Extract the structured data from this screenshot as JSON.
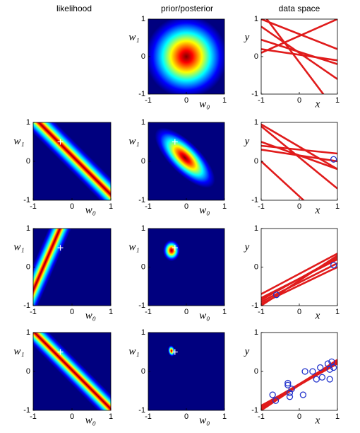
{
  "column_titles": [
    "likelihood",
    "prior/posterior",
    "data space"
  ],
  "chart_data": [
    {
      "type": "heatmap",
      "colormap": "jet",
      "xlabel": "w₀",
      "ylabel": "w₁",
      "xlim": [
        -1,
        1
      ],
      "ylim": [
        -1,
        1
      ],
      "xticks": [
        -1,
        0,
        1
      ],
      "yticks": [
        -1,
        0,
        1
      ]
    },
    {
      "type": "line",
      "xlabel": "x",
      "ylabel": "y",
      "xlim": [
        -1,
        1
      ],
      "ylim": [
        -1,
        1
      ],
      "xticks": [
        -1,
        0,
        1
      ],
      "yticks": [
        -1,
        0,
        1
      ],
      "x": [
        -1,
        1
      ],
      "series": [
        {
          "color": "#e01b1b",
          "values": [
            1.0,
            0.2
          ]
        },
        {
          "color": "#e01b1b",
          "values": [
            0.45,
            -0.2
          ]
        },
        {
          "color": "#e01b1b",
          "values": [
            0.2,
            -0.1
          ]
        },
        {
          "color": "#e01b1b",
          "values": [
            1.2,
            -1.5
          ]
        },
        {
          "color": "#e01b1b",
          "values": [
            0.8,
            -0.6
          ]
        },
        {
          "color": "#e01b1b",
          "values": [
            0.1,
            1.0
          ]
        }
      ]
    },
    {
      "type": "heatmap",
      "colormap": "jet",
      "xlabel": "w₀",
      "ylabel": "w₁",
      "xlim": [
        -1,
        1
      ],
      "ylim": [
        -1,
        1
      ],
      "xticks": [
        -1,
        0,
        1
      ],
      "yticks": [
        -1,
        0,
        1
      ],
      "marker": {
        "x": -0.3,
        "y": 0.5,
        "color": "#ffffff"
      }
    },
    {
      "type": "heatmap",
      "colormap": "jet",
      "xlabel": "w₀",
      "ylabel": "w₁",
      "xlim": [
        -1,
        1
      ],
      "ylim": [
        -1,
        1
      ],
      "xticks": [
        -1,
        0,
        1
      ],
      "yticks": [
        -1,
        0,
        1
      ],
      "marker": {
        "x": -0.3,
        "y": 0.5,
        "color": "#ffffff"
      }
    },
    {
      "type": "line",
      "xlabel": "x",
      "ylabel": "y",
      "xlim": [
        -1,
        1
      ],
      "ylim": [
        -1,
        1
      ],
      "xticks": [
        -1,
        0,
        1
      ],
      "yticks": [
        -1,
        0,
        1
      ],
      "x": [
        -1,
        1
      ],
      "series": [
        {
          "color": "#e01b1b",
          "values": [
            0.5,
            -0.2
          ]
        },
        {
          "color": "#e01b1b",
          "values": [
            0.3,
            0.0
          ]
        },
        {
          "color": "#e01b1b",
          "values": [
            0.95,
            -0.2
          ]
        },
        {
          "color": "#e01b1b",
          "values": [
            0.4,
            0.2
          ]
        },
        {
          "color": "#e01b1b",
          "values": [
            0.9,
            -0.7
          ]
        },
        {
          "color": "#e01b1b",
          "values": [
            0.0,
            -1.8
          ]
        }
      ],
      "points": {
        "color": "#2233cc",
        "x": [
          0.9
        ],
        "y": [
          0.05
        ]
      }
    },
    {
      "type": "heatmap",
      "colormap": "jet",
      "xlabel": "w₀",
      "ylabel": "w₁",
      "xlim": [
        -1,
        1
      ],
      "ylim": [
        -1,
        1
      ],
      "xticks": [
        -1,
        0,
        1
      ],
      "yticks": [
        -1,
        0,
        1
      ],
      "marker": {
        "x": -0.3,
        "y": 0.5,
        "color": "#ffffff"
      }
    },
    {
      "type": "heatmap",
      "colormap": "jet",
      "xlabel": "w₀",
      "ylabel": "w₁",
      "xlim": [
        -1,
        1
      ],
      "ylim": [
        -1,
        1
      ],
      "xticks": [
        -1,
        0,
        1
      ],
      "yticks": [
        -1,
        0,
        1
      ],
      "marker": {
        "x": -0.3,
        "y": 0.5,
        "color": "#ffffff"
      }
    },
    {
      "type": "line",
      "xlabel": "x",
      "ylabel": "y",
      "xlim": [
        -1,
        1
      ],
      "ylim": [
        -1,
        1
      ],
      "xticks": [
        -1,
        0,
        1
      ],
      "yticks": [
        -1,
        0,
        1
      ],
      "x": [
        -1,
        1
      ],
      "series": [
        {
          "color": "#e01b1b",
          "values": [
            -1.0,
            0.3
          ]
        },
        {
          "color": "#e01b1b",
          "values": [
            -0.8,
            0.2
          ]
        },
        {
          "color": "#e01b1b",
          "values": [
            -0.95,
            0.0
          ]
        },
        {
          "color": "#e01b1b",
          "values": [
            -0.7,
            0.35
          ]
        },
        {
          "color": "#e01b1b",
          "values": [
            -0.9,
            0.1
          ]
        },
        {
          "color": "#e01b1b",
          "values": [
            -0.85,
            0.25
          ]
        }
      ],
      "points": {
        "color": "#2233cc",
        "x": [
          -0.6,
          0.9
        ],
        "y": [
          -0.72,
          0.05
        ]
      }
    },
    {
      "type": "heatmap",
      "colormap": "jet",
      "xlabel": "w₀",
      "ylabel": "w₁",
      "xlim": [
        -1,
        1
      ],
      "ylim": [
        -1,
        1
      ],
      "xticks": [
        -1,
        0,
        1
      ],
      "yticks": [
        -1,
        0,
        1
      ],
      "marker": {
        "x": -0.3,
        "y": 0.5,
        "color": "#ffffff"
      }
    },
    {
      "type": "heatmap",
      "colormap": "jet",
      "xlabel": "w₀",
      "ylabel": "w₁",
      "xlim": [
        -1,
        1
      ],
      "ylim": [
        -1,
        1
      ],
      "xticks": [
        -1,
        0,
        1
      ],
      "yticks": [
        -1,
        0,
        1
      ],
      "marker": {
        "x": -0.3,
        "y": 0.5,
        "color": "#ffffff"
      }
    },
    {
      "type": "line",
      "xlabel": "x",
      "ylabel": "y",
      "xlim": [
        -1,
        1
      ],
      "ylim": [
        -1,
        1
      ],
      "xticks": [
        -1,
        0,
        1
      ],
      "yticks": [
        -1,
        0,
        1
      ],
      "x": [
        -1,
        1
      ],
      "series": [
        {
          "color": "#e01b1b",
          "values": [
            -0.95,
            0.25
          ]
        },
        {
          "color": "#e01b1b",
          "values": [
            -0.9,
            0.25
          ]
        },
        {
          "color": "#e01b1b",
          "values": [
            -0.92,
            0.22
          ]
        },
        {
          "color": "#e01b1b",
          "values": [
            -1.0,
            0.3
          ]
        },
        {
          "color": "#e01b1b",
          "values": [
            -0.88,
            0.2
          ]
        },
        {
          "color": "#e01b1b",
          "values": [
            -0.93,
            0.28
          ]
        }
      ],
      "points": {
        "color": "#2233cc",
        "x": [
          -0.7,
          -0.62,
          -0.3,
          -0.3,
          -0.25,
          -0.2,
          -0.25,
          0.1,
          0.15,
          0.35,
          0.45,
          0.55,
          0.6,
          0.75,
          0.8,
          0.85,
          0.8,
          0.9
        ],
        "y": [
          -0.6,
          -0.75,
          -0.3,
          -0.35,
          -0.55,
          -0.45,
          -0.65,
          -0.6,
          0.0,
          0.0,
          -0.2,
          0.1,
          -0.15,
          0.2,
          0.05,
          0.25,
          -0.2,
          0.1
        ]
      }
    }
  ]
}
